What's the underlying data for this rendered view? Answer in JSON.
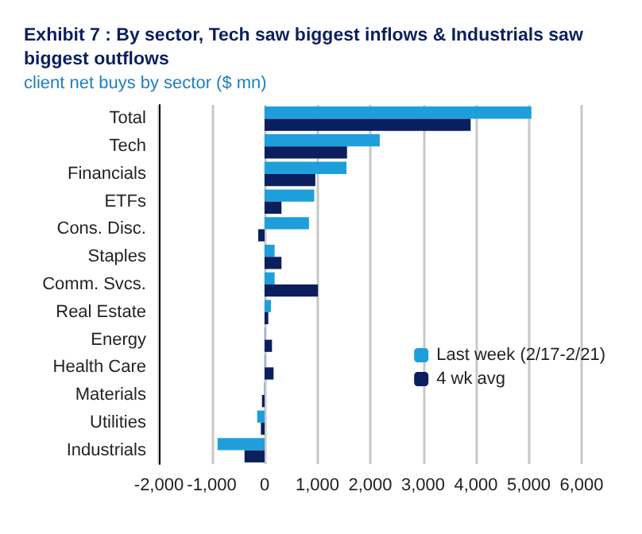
{
  "chart_data": {
    "type": "bar",
    "orientation": "horizontal",
    "title": "Exhibit 7 : By sector, Tech saw biggest inflows & Industrials saw biggest outflows",
    "subtitle": "client net buys by sector ($ mn)",
    "categories": [
      "Total",
      "Tech",
      "Financials",
      "ETFs",
      "Cons. Disc.",
      "Staples",
      "Comm. Svcs.",
      "Real Estate",
      "Energy",
      "Health Care",
      "Materials",
      "Utilities",
      "Industrials"
    ],
    "series": [
      {
        "name": "Last week (2/17-2/21)",
        "color": "#1e9fdb",
        "values": [
          5050,
          2180,
          1550,
          940,
          840,
          190,
          190,
          120,
          10,
          10,
          -10,
          -140,
          -890
        ]
      },
      {
        "name": "4 wk avg",
        "color": "#0b1f5e",
        "values": [
          3900,
          1560,
          960,
          320,
          -120,
          320,
          1010,
          70,
          140,
          170,
          -50,
          -70,
          -380
        ]
      }
    ],
    "xlim": [
      -2000,
      6000
    ],
    "xticks": [
      {
        "value": -2000,
        "label": "-2,000"
      },
      {
        "value": -1000,
        "label": "-1,000"
      },
      {
        "value": 0,
        "label": "0"
      },
      {
        "value": 1000,
        "label": "1,000"
      },
      {
        "value": 2000,
        "label": "2,000"
      },
      {
        "value": 3000,
        "label": "3,000"
      },
      {
        "value": 4000,
        "label": "4,000"
      },
      {
        "value": 5000,
        "label": "5,000"
      },
      {
        "value": 6000,
        "label": "6,000"
      }
    ],
    "grid": "x",
    "legend": "right"
  }
}
